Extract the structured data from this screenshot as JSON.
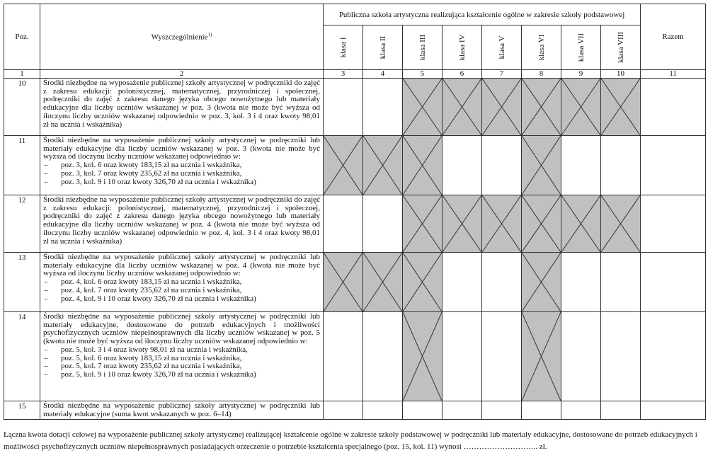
{
  "header": {
    "poz": "Poz.",
    "desc": "Wyszczególnienie",
    "desc_sup": "1)",
    "group": "Publiczna szkoła artystyczna realizująca kształcenie ogólne w zakresie szkoły podstawowej",
    "classes": [
      "klasa I",
      "klasa II",
      "klasa III",
      "klasa IV",
      "klasa V",
      "klasa VI",
      "klasa VII",
      "klasa VIII"
    ],
    "total": "Razem"
  },
  "column_numbers": [
    "1",
    "2",
    "3",
    "4",
    "5",
    "6",
    "7",
    "8",
    "9",
    "10",
    "11"
  ],
  "rows": [
    {
      "poz": "10",
      "text": "Środki niezbędne na wyposażenie publicznej szkoły artystycznej w podręczniki do zajęć z zakresu edukacji: polonistycznej, matematycznej, przyrodniczej i społecznej, podręczniki do zajęć z zakresu danego języka obcego nowożytnego lub materiały edukacyjne dla liczby uczniów wskazanej w poz. 3 (kwota nie może być wyższa od iloczynu liczby uczniów wskazanej odpowiednio w poz. 3, kol. 3 i 4 oraz kwoty 98,01 zł na ucznia i wskaźnika)",
      "items": [],
      "crossed": [
        2,
        3,
        4,
        5,
        6,
        7
      ],
      "h": 81
    },
    {
      "poz": "11",
      "text": "Środki niezbędne na wyposażenie publicznej szkoły artystycznej w podręczniki lub materiały edukacyjne dla liczby uczniów wskazanej w poz. 3 (kwota nie może być wyższa od iloczynu liczby uczniów wskazanej odpowiednio w:",
      "items": [
        "poz. 3, kol. 6 oraz kwoty 183,15 zł na ucznia i wskaźnika,",
        "poz. 3, kol. 7 oraz kwoty 235,62 zł na ucznia i wskaźnika,",
        "poz. 3, kol. 9 i 10 oraz kwoty 326,70 zł na ucznia i wskaźnika)"
      ],
      "crossed": [
        0,
        1,
        2,
        5
      ],
      "h": 84
    },
    {
      "poz": "12",
      "text": "Środki niezbędne na wyposażenie publicznej szkoły artystycznej w podręczniki do zajęć z zakresu edukacji: polonistycznej, matematycznej, przyrodniczej i społecznej, podręczniki do zajęć z zakresu danego języka obcego nowożytnego lub materiały edukacyjne dla liczby uczniów wskazanej w poz. 4 (kwota nie może być wyższa od iloczynu liczby uczniów wskazanej odpowiednio w poz. 4, kol. 3 i 4 oraz kwoty 98,01 zł na ucznia i wskaźnika)",
      "items": [],
      "crossed": [
        2,
        3,
        4,
        5,
        6,
        7
      ],
      "h": 81
    },
    {
      "poz": "13",
      "text": "Środki niezbędne na wyposażenie publicznej szkoły artystycznej w podręczniki lub materiały edukacyjne dla liczby uczniów wskazanej w poz. 4 (kwota nie może być wyższa od iloczynu liczby uczniów wskazanej odpowiednio w:",
      "items": [
        "poz. 4, kol. 6 oraz kwoty 183,15 zł na ucznia i wskaźnika,",
        "poz. 4, kol. 7 oraz kwoty 235,62 zł na ucznia i wskaźnika,",
        "poz. 4, kol. 9 i 10 oraz kwoty 326,70 zł na ucznia i wskaźnika)"
      ],
      "crossed": [
        0,
        1,
        2,
        5
      ],
      "h": 84
    },
    {
      "poz": "14",
      "text": "Środki niezbędne na wyposażenie publicznej szkoły artystycznej w podręczniki lub materiały edukacyjne, dostosowane do potrzeb edukacyjnych i możliwości psychofizycznych uczniów niepełnosprawnych dla liczby uczniów wskazanej w poz. 5 (kwota nie może być wyższa od iloczynu liczby uczniów wskazanej odpowiednio w:",
      "items": [
        "poz. 5, kol. 3 i 4 oraz kwoty 98,01 zł na ucznia i wskaźnika,",
        "poz. 5, kol. 6 oraz kwoty 183,15 zł na ucznia i wskaźnika,",
        "poz. 5, kol. 7 oraz kwoty 235,62 zł na ucznia i wskaźnika,",
        "poz. 5, kol. 9 i 10 oraz kwoty 326,70 zł na ucznia i wskaźnika)"
      ],
      "crossed": [
        2,
        5
      ],
      "h": 126
    },
    {
      "poz": "15",
      "text": "Środki niezbędne na wyposażenie publicznej szkoły artystycznej w podręczniki lub materiały edukacyjne (suma kwot wskazanych w poz. 6–14)",
      "items": [],
      "crossed": [],
      "h": 26
    }
  ],
  "list_dash": "–",
  "footer": {
    "text": "Łączna kwota dotacji celowej na wyposażenie publicznej szkoły artystycznej realizującej kształcenie ogólne w zakresie szkoły podstawowej w podręczniki lub materiały edukacyjne, dostosowane do potrzeb edukacyjnych i możliwości psychofizycznych uczniów niepełnosprawnych posiadających orzeczenie o potrzebie kształcenia specjalnego (poz. 15, kol. 11) wynosi ……………………….. zł."
  },
  "colors": {
    "crossed_fill": "#c0c0c0",
    "border": "#333333"
  }
}
